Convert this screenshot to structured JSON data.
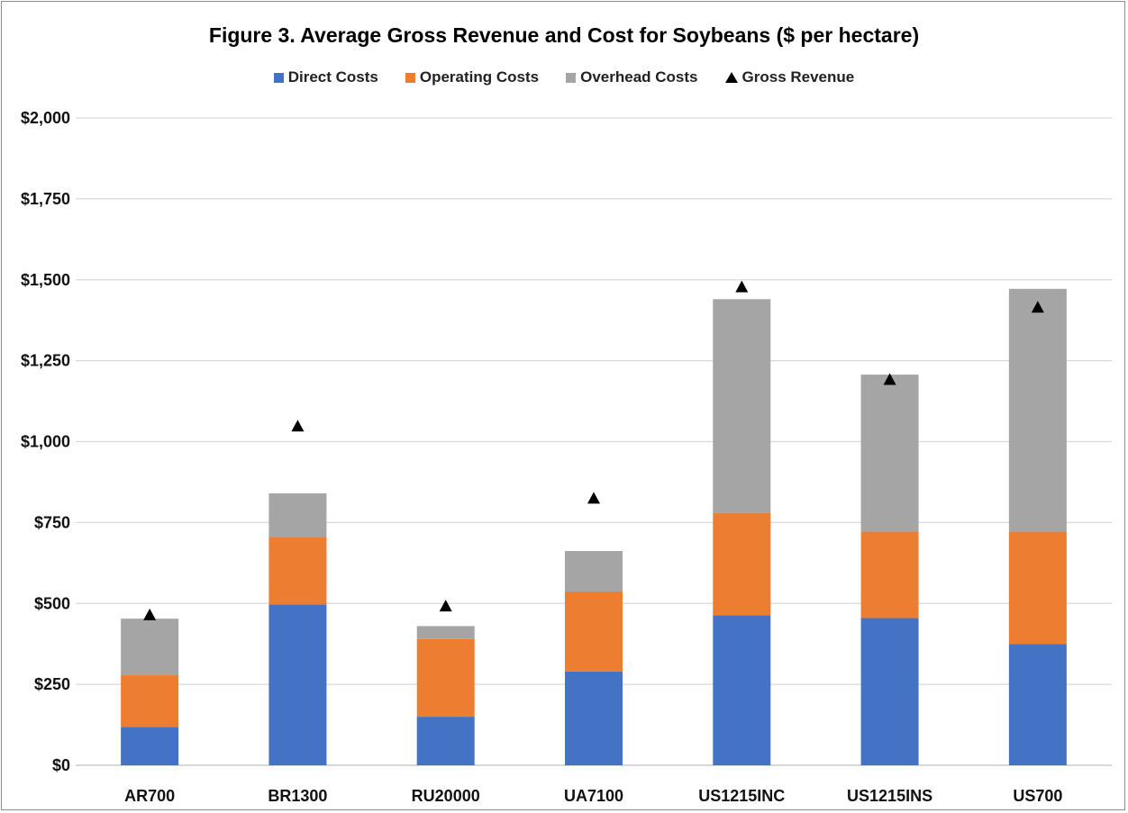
{
  "chart_data": {
    "type": "bar",
    "stacked": true,
    "title": "Figure 3.  Average Gross Revenue and Cost for Soybeans ($ per hectare)",
    "categories": [
      "AR700",
      "BR1300",
      "RU20000",
      "UA7100",
      "US1215INC",
      "US1215INS",
      "US700"
    ],
    "series": [
      {
        "name": "Direct Costs",
        "color": "#4472C4",
        "values": [
          118,
          497,
          150,
          290,
          463,
          455,
          375
        ]
      },
      {
        "name": "Operating Costs",
        "color": "#ED7D31",
        "values": [
          160,
          208,
          240,
          247,
          317,
          267,
          347
        ]
      },
      {
        "name": "Overhead Costs",
        "color": "#A5A5A5",
        "values": [
          175,
          135,
          40,
          125,
          660,
          485,
          750
        ]
      }
    ],
    "markers": {
      "name": "Gross Revenue",
      "color": "#000000",
      "shape": "triangle",
      "values": [
        465,
        1048,
        492,
        825,
        1478,
        1192,
        1415
      ]
    },
    "yticks": [
      "$0",
      "$250",
      "$500",
      "$750",
      "$1,000",
      "$1,250",
      "$1,500",
      "$1,750",
      "$2,000"
    ],
    "ylim": [
      0,
      2000
    ],
    "grid": true,
    "legend_position": "top"
  }
}
